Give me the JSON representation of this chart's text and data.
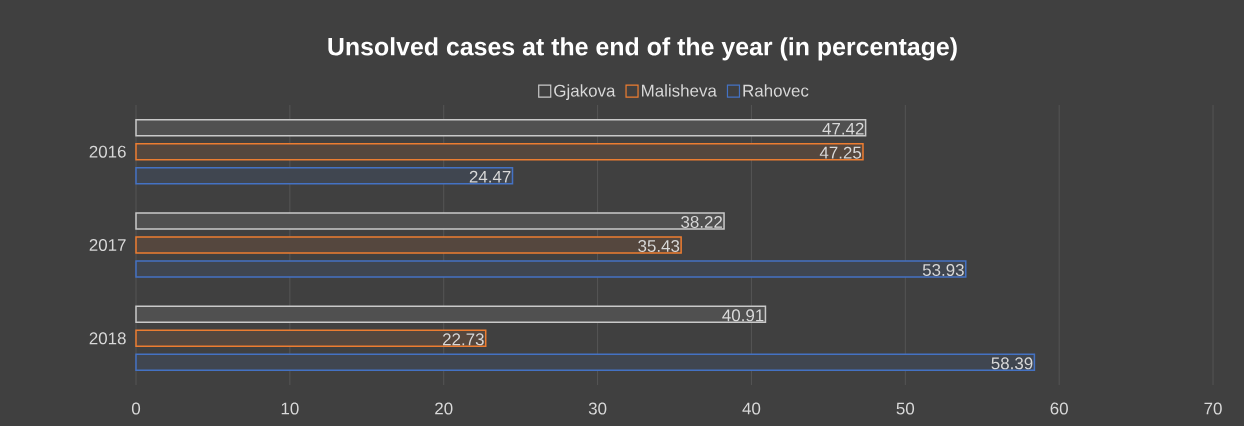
{
  "chart_data": {
    "type": "bar",
    "orientation": "horizontal",
    "title": "Unsolved cases at the end of the year (in percentage)",
    "categories": [
      "2016",
      "2017",
      "2018"
    ],
    "series": [
      {
        "name": "Gjakova",
        "color": "#c9c9c9",
        "values": [
          47.42,
          38.22,
          40.91
        ]
      },
      {
        "name": "Malisheva",
        "color": "#ed7d31",
        "values": [
          47.25,
          35.43,
          22.73
        ]
      },
      {
        "name": "Rahovec",
        "color": "#4472c4",
        "values": [
          24.47,
          53.93,
          58.39
        ]
      }
    ],
    "xlim": [
      0,
      70
    ],
    "xticks": [
      0,
      10,
      20,
      30,
      40,
      50,
      60,
      70
    ],
    "grid": "x",
    "legend": "top",
    "data_labels": true
  }
}
